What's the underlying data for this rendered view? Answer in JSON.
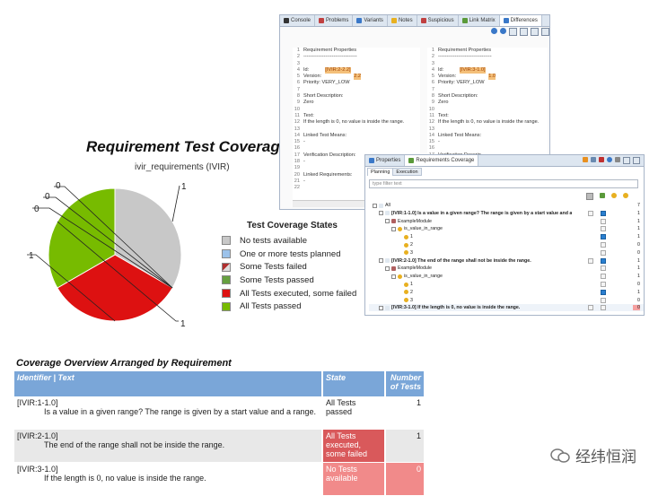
{
  "chart": {
    "title": "Requirement Test Coverage",
    "subtitle": "ivir_requirements (IVIR)"
  },
  "chart_data": {
    "type": "pie",
    "title": "Requirement Test Coverage",
    "subtitle": "ivir_requirements (IVIR)",
    "slices": [
      {
        "name": "No tests available",
        "value": 1,
        "color": "#c8c8c8"
      },
      {
        "name": "One or more tests planned",
        "value": 0,
        "color": "#9cc2ea"
      },
      {
        "name": "Some Tests failed",
        "value": 0,
        "color": "#b03030"
      },
      {
        "name": "Some Tests passed",
        "value": 0,
        "color": "#66a040"
      },
      {
        "name": "All Tests executed, some failed",
        "value": 1,
        "color": "#dd1111"
      },
      {
        "name": "All Tests passed",
        "value": 1,
        "color": "#77bb00"
      }
    ],
    "slice_labels": [
      "1",
      "0",
      "0",
      "0",
      "1",
      "1"
    ],
    "legend_title": "Test Coverage States",
    "legend_position": "right"
  },
  "coverage": {
    "title": "Coverage Overview Arranged by Requirement",
    "headers": {
      "id": "Identifier | Text",
      "state": "State",
      "num": "Number of Tests"
    },
    "rows": [
      {
        "id": "[IVIR:1-1.0]",
        "text": "Is a value in a given range? The range is given by a start value and a range.",
        "state": "All Tests passed",
        "num": "1",
        "bg": "#ffffff",
        "state_bg": "#ffffff",
        "state_color": "#222222"
      },
      {
        "id": "[IVIR:2-1.0]",
        "text": "The end of the range shall not be inside the range.",
        "state": "All Tests executed, some failed",
        "num": "1",
        "bg": "#e8e8e8",
        "state_bg": "#d9595b",
        "state_color": "#ffffff"
      },
      {
        "id": "[IVIR:3-1.0]",
        "text": "If the length is 0, no value is inside the range.",
        "state": "No Tests available",
        "num": "0",
        "bg": "#ffffff",
        "state_bg": "#f18a8a",
        "state_color": "#ffffff"
      }
    ]
  },
  "top_window": {
    "tabs": [
      "Console",
      "Problems",
      "Variants",
      "Notes",
      "Suspicious",
      "Link Matrix",
      "Differences"
    ],
    "left_pane": [
      {
        "n": "1",
        "t": "Requirement Properties"
      },
      {
        "n": "2",
        "t": "--------------------------------"
      },
      {
        "n": "3",
        "t": ""
      },
      {
        "n": "4",
        "t": "Id:",
        "v": "[IVIR:2-2.2]"
      },
      {
        "n": "5",
        "t": "Version:",
        "v": "2.2"
      },
      {
        "n": "6",
        "t": "Priority:  VERY_LOW"
      },
      {
        "n": "7",
        "t": ""
      },
      {
        "n": "8",
        "t": "Short Description:"
      },
      {
        "n": "9",
        "t": "Zero"
      },
      {
        "n": "10",
        "t": ""
      },
      {
        "n": "11",
        "t": "Text:"
      },
      {
        "n": "12",
        "t": "If the length is 0, no value is inside the range."
      },
      {
        "n": "13",
        "t": ""
      },
      {
        "n": "14",
        "t": "Linked Test Means:"
      },
      {
        "n": "15",
        "t": "-"
      },
      {
        "n": "16",
        "t": ""
      },
      {
        "n": "17",
        "t": "Verification Description:"
      },
      {
        "n": "18",
        "t": "-"
      },
      {
        "n": "19",
        "t": ""
      },
      {
        "n": "20",
        "t": "Linked Requirements:"
      },
      {
        "n": "21",
        "t": "-"
      },
      {
        "n": "22",
        "t": ""
      }
    ],
    "right_pane": [
      {
        "n": "1",
        "t": "Requirement Properties"
      },
      {
        "n": "2",
        "t": "--------------------------------"
      },
      {
        "n": "3",
        "t": ""
      },
      {
        "n": "4",
        "t": "Id:",
        "v": "[IVIR:3-1.0]"
      },
      {
        "n": "5",
        "t": "Version:",
        "v": "1.0"
      },
      {
        "n": "6",
        "t": "Priority:  VERY_LOW"
      },
      {
        "n": "7",
        "t": ""
      },
      {
        "n": "8",
        "t": "Short Description:"
      },
      {
        "n": "9",
        "t": "Zero"
      },
      {
        "n": "10",
        "t": ""
      },
      {
        "n": "11",
        "t": "Text:"
      },
      {
        "n": "12",
        "t": "If the length is 0, no value is inside the range."
      },
      {
        "n": "13",
        "t": ""
      },
      {
        "n": "14",
        "t": "Linked Test Means:"
      },
      {
        "n": "15",
        "t": "-"
      },
      {
        "n": "16",
        "t": ""
      },
      {
        "n": "17",
        "t": "Verification Descrip"
      }
    ]
  },
  "bottom_window": {
    "tabs": [
      "Properties",
      "Requirements Coverage"
    ],
    "subtabs": [
      "Planning",
      "Execution"
    ],
    "filter_placeholder": "type filter text",
    "rows": [
      {
        "indent": 0,
        "label": "All",
        "c": [
          "",
          "",
          "7"
        ]
      },
      {
        "indent": 1,
        "label": "[IVIR:1-1.0] Is a value in a given range? The range is given by a start value and a",
        "c": [
          "box",
          "chk",
          "1"
        ]
      },
      {
        "indent": 2,
        "label": "ExampleModule",
        "c": [
          "",
          "box",
          "1"
        ]
      },
      {
        "indent": 3,
        "label": "is_value_in_range",
        "c": [
          "",
          "box",
          "1"
        ]
      },
      {
        "indent": 4,
        "label": "1",
        "c": [
          "",
          "chk",
          "1"
        ]
      },
      {
        "indent": 4,
        "label": "2",
        "c": [
          "",
          "box",
          "0"
        ]
      },
      {
        "indent": 4,
        "label": "3",
        "c": [
          "",
          "box",
          "0"
        ]
      },
      {
        "indent": 1,
        "label": "[IVIR:2-1.0] The end of the range shall not be inside the range.",
        "c": [
          "box",
          "chk",
          "1"
        ]
      },
      {
        "indent": 2,
        "label": "ExampleModule",
        "c": [
          "",
          "box",
          "1"
        ]
      },
      {
        "indent": 3,
        "label": "is_value_in_range",
        "c": [
          "",
          "box",
          "1"
        ]
      },
      {
        "indent": 4,
        "label": "1",
        "c": [
          "",
          "box",
          "0"
        ]
      },
      {
        "indent": 4,
        "label": "2",
        "c": [
          "",
          "chk",
          "1"
        ]
      },
      {
        "indent": 4,
        "label": "3",
        "c": [
          "",
          "box",
          "0"
        ]
      },
      {
        "indent": 1,
        "label": "[IVIR:3-1.0] If the length is 0, no value is inside the range.",
        "c": [
          "box",
          "box",
          "0"
        ]
      }
    ]
  },
  "watermark": "经纬恒润"
}
